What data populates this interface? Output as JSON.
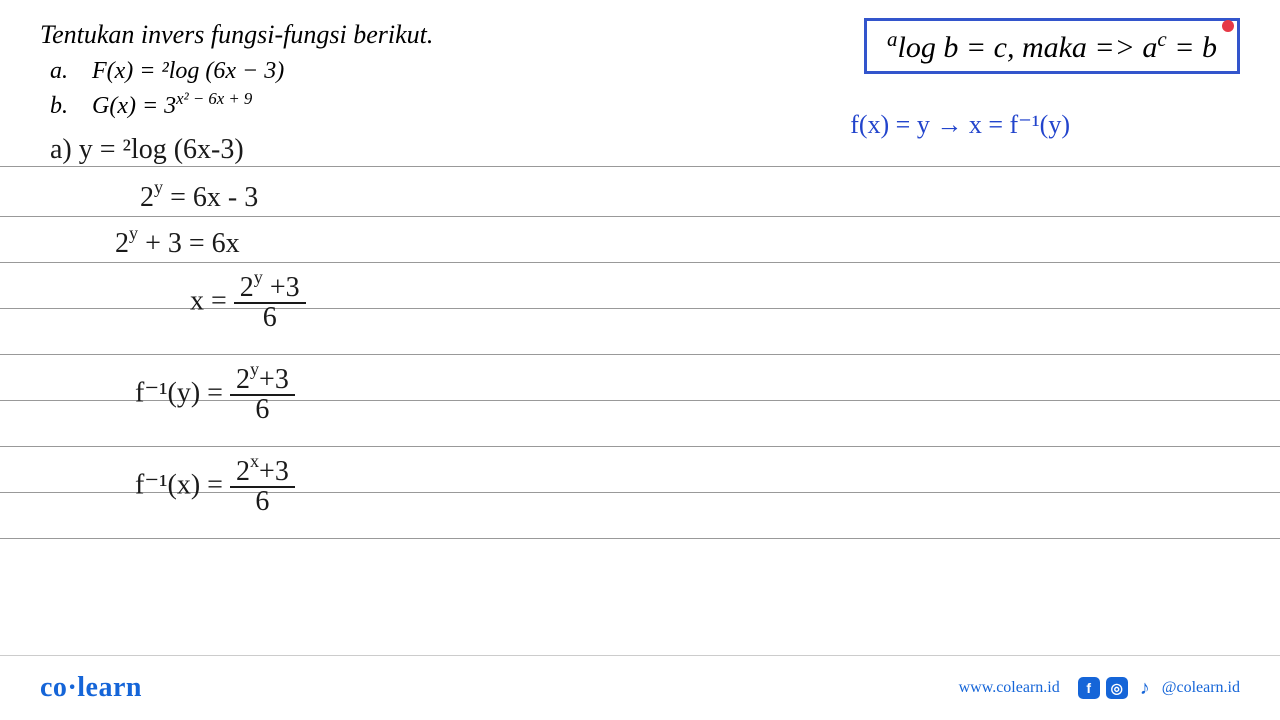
{
  "problem": {
    "title": "Tentukan invers fungsi-fungsi berikut.",
    "item_a_label": "a.",
    "item_a_text": "F(x) = ²log (6x − 3)",
    "item_b_label": "b.",
    "item_b_prefix": "G(x) = 3",
    "item_b_exponent": "x² − 6x + 9"
  },
  "formula_box": {
    "sup_a": "a",
    "log_text": "log b = c, maka => a",
    "sup_c": "c",
    "tail": " = b",
    "border_color": "#3355cc",
    "dot_color": "#e63946"
  },
  "blue_note": "f(x) = y  →  x = f⁻¹(y)",
  "handwritten": {
    "line1": "a)  y = ²log (6x-3)",
    "line2_prefix": "2",
    "line2_exp": "y",
    "line2_rest": " =  6x - 3",
    "line3_prefix": "2",
    "line3_exp": "y",
    "line3_rest": " + 3 = 6x",
    "line4_prefix": "x =",
    "line4_num_base": "2",
    "line4_num_exp": "y",
    "line4_num_tail": " +3",
    "line4_den": "6",
    "line5_prefix": "f⁻¹(y) =",
    "line5_num_base": "2",
    "line5_num_exp": "y",
    "line5_num_tail": "+3",
    "line5_den": "6",
    "line6_prefix": "f⁻¹(x) =",
    "line6_num_base": "2",
    "line6_num_exp": "x",
    "line6_num_tail": "+3",
    "line6_den": "6"
  },
  "line_positions": [
    150,
    196,
    242,
    288,
    334,
    380,
    426,
    472,
    518,
    564
  ],
  "colors": {
    "text_black": "#1a1a1a",
    "text_blue": "#2244cc",
    "line_gray": "#999999",
    "brand_blue": "#1565d8",
    "white": "#ffffff"
  },
  "footer": {
    "logo_part1": "co",
    "logo_dot": "·",
    "logo_part2": "learn",
    "url": "www.colearn.id",
    "handle": "@colearn.id",
    "fb": "f",
    "ig": "◎",
    "tk": "♪"
  }
}
